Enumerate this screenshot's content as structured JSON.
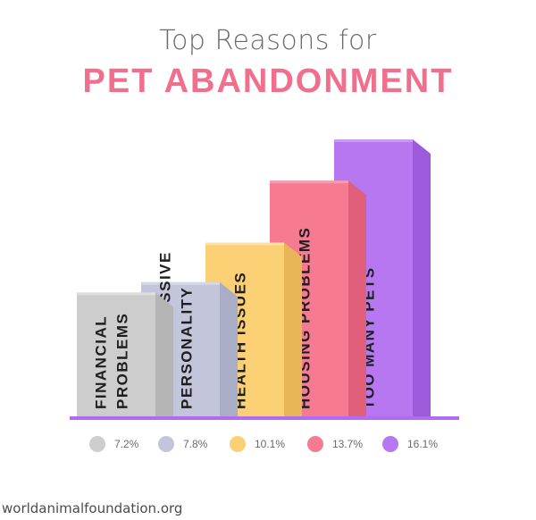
{
  "header": {
    "title_line1": "Top Reasons for",
    "title_line2": "PET ABANDONMENT"
  },
  "chart_data": {
    "type": "bar",
    "style": "3d-columns",
    "title": "Top Reasons for PET ABANDONMENT",
    "categories": [
      [
        "FINANCIAL",
        "PROBLEMS"
      ],
      [
        "NON-AGGRESSIVE",
        "PERSONALITY"
      ],
      [
        "HEALTH ISSUES"
      ],
      [
        "HOUSING PROBLEMS"
      ],
      [
        "TOO MANY PETS"
      ]
    ],
    "values": [
      7.2,
      7.8,
      10.1,
      13.7,
      16.1
    ],
    "value_labels": [
      "7.2%",
      "7.8%",
      "10.1%",
      "13.7%",
      "16.1%"
    ],
    "colors": {
      "front": [
        "#cdcdcd",
        "#c3c6da",
        "#fbd074",
        "#f57a92",
        "#b777f0"
      ],
      "side": [
        "#b5b5b5",
        "#a9adc6",
        "#e8b656",
        "#e05f7b",
        "#9e5ada"
      ],
      "top": [
        "#dedede",
        "#d4d7e6",
        "#fde0a2",
        "#f99bb0",
        "#c999f5"
      ],
      "baseline": "#b06cf0"
    },
    "legend_position": "bottom",
    "grid": false
  },
  "footer": {
    "source": "worldanimalfoundation.org"
  }
}
